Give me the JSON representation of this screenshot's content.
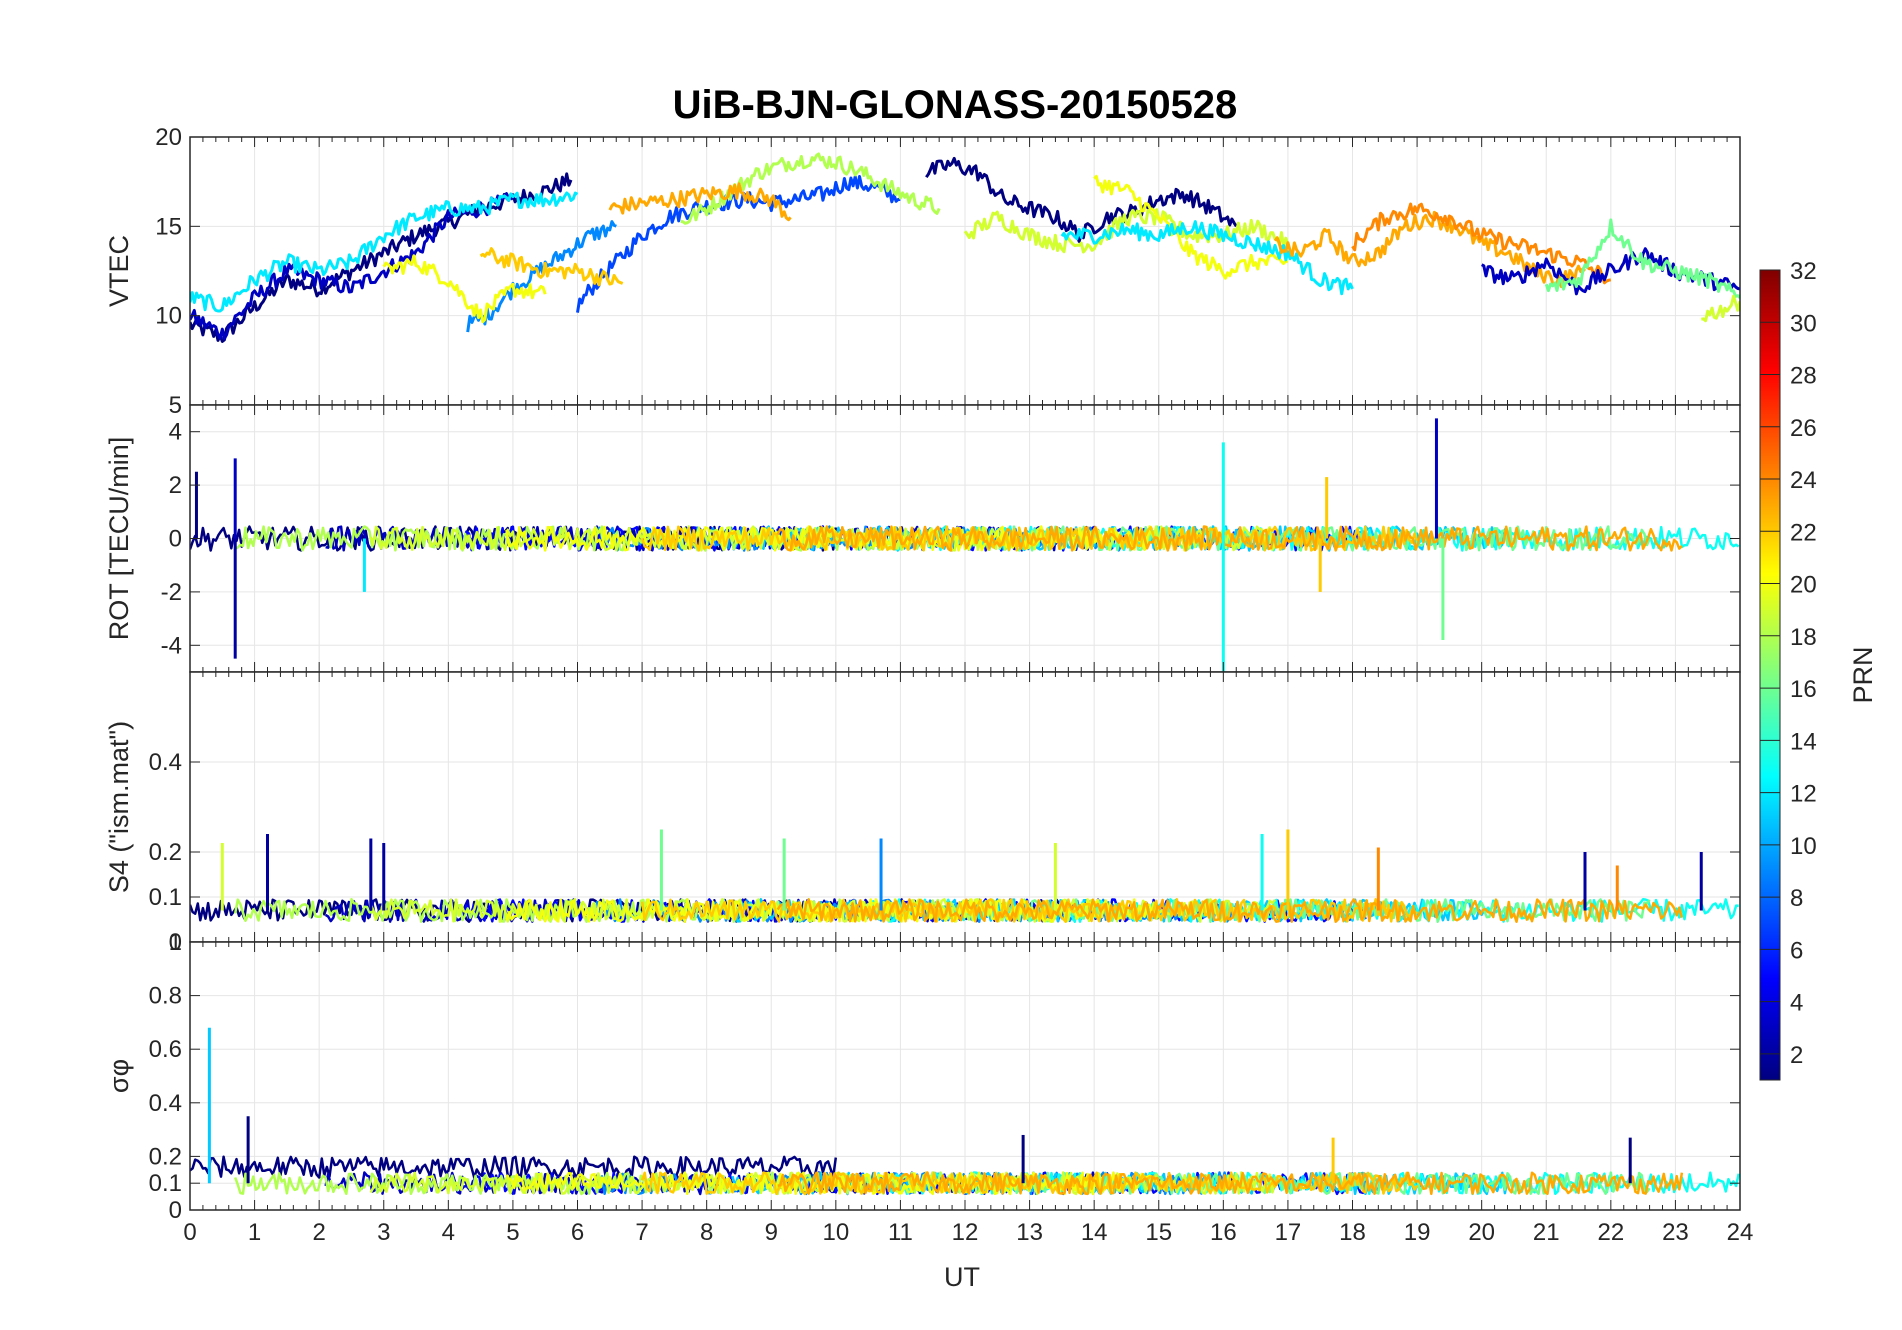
{
  "chart_data": {
    "type": "line",
    "title": "UiB-BJN-GLONASS-20150528",
    "xlabel": "UT",
    "xlim": [
      0,
      24
    ],
    "x_ticks": [
      "0",
      "1",
      "2",
      "3",
      "4",
      "5",
      "6",
      "7",
      "8",
      "9",
      "10",
      "11",
      "12",
      "13",
      "14",
      "15",
      "16",
      "17",
      "18",
      "19",
      "20",
      "21",
      "22",
      "23",
      "24"
    ],
    "grid": true,
    "colormap": "jet",
    "colorbar": {
      "label": "PRN",
      "range": [
        1,
        32
      ],
      "ticks": [
        "2",
        "4",
        "6",
        "8",
        "10",
        "12",
        "14",
        "16",
        "18",
        "20",
        "22",
        "24",
        "26",
        "28",
        "30",
        "32"
      ],
      "placement": "right"
    },
    "panels": [
      {
        "id": "vtec",
        "ylabel": "VTEC",
        "ylim": [
          5,
          20
        ],
        "y_ticks": [
          "5",
          "10",
          "15",
          "20"
        ],
        "series": [
          {
            "prn": 1,
            "x": [
              0,
              0.5,
              1,
              1.5,
              2,
              2.5,
              3,
              3.5,
              4,
              4.5,
              5,
              5.5,
              5.9
            ],
            "y": [
              9.5,
              8.8,
              10.5,
              12,
              11.5,
              12.5,
              13.5,
              14.5,
              15.2,
              16,
              16.5,
              17,
              17.6
            ]
          },
          {
            "prn": 3,
            "x": [
              0,
              0.5,
              1,
              1.5,
              2,
              2.5,
              3,
              3.5,
              4,
              4.5,
              5
            ],
            "y": [
              10,
              9,
              11,
              12.5,
              12,
              11.5,
              12.5,
              13.5,
              15.5,
              16,
              16.5
            ]
          },
          {
            "prn": 7,
            "x": [
              6,
              6.2,
              6.6,
              7,
              7.4,
              7.8,
              8.2,
              8.6,
              9,
              9.4,
              9.8,
              10.2,
              10.6,
              11
            ],
            "y": [
              10.5,
              11.5,
              13,
              14.5,
              15.5,
              16,
              16.3,
              16.5,
              16.3,
              16.5,
              16.8,
              17.5,
              17.2,
              16.5
            ]
          },
          {
            "prn": 9,
            "x": [
              4.3,
              4.6,
              5,
              5.4,
              5.8,
              6.2,
              6.6
            ],
            "y": [
              9.5,
              10,
              11.5,
              12.5,
              13.5,
              14.5,
              15
            ]
          },
          {
            "prn": 12,
            "x": [
              0,
              0.5,
              1,
              1.5,
              2,
              2.5,
              3,
              3.5,
              4,
              4.5,
              5,
              5.5,
              6
            ],
            "y": [
              11,
              10.5,
              12,
              13,
              12.5,
              13,
              14.5,
              15.5,
              16,
              16,
              16.5,
              16.5,
              16.8
            ]
          },
          {
            "prn": 18,
            "x": [
              7.6,
              8,
              8.4,
              8.8,
              9.2,
              9.6,
              10,
              10.4,
              10.8,
              11.2,
              11.6
            ],
            "y": [
              15.2,
              16,
              17,
              18,
              18.5,
              18.8,
              18.6,
              18,
              17.2,
              16.5,
              16
            ]
          },
          {
            "prn": 20,
            "x": [
              3,
              3.5,
              4,
              4.5,
              5,
              5.5
            ],
            "y": [
              12.5,
              13,
              12,
              10,
              11.5,
              11.2
            ]
          },
          {
            "prn": 22,
            "x": [
              4.5,
              5,
              5.5,
              6,
              6.5,
              6.7
            ],
            "y": [
              13.5,
              13,
              12.5,
              12.5,
              12,
              11.8
            ]
          },
          {
            "prn": 23,
            "x": [
              6.5,
              7,
              7.5,
              8,
              8.5,
              9,
              9.3
            ],
            "y": [
              16,
              16.3,
              16.5,
              16.8,
              17,
              16.5,
              15.5
            ]
          },
          {
            "prn": 1,
            "x": [
              11.4,
              11.8,
              12.2,
              12.6,
              13,
              13.4,
              13.8,
              14.2,
              14.6,
              15,
              15.4,
              15.8,
              16.2
            ],
            "y": [
              18,
              18.5,
              18,
              16.5,
              16,
              15.5,
              14.5,
              15.5,
              15.8,
              16.5,
              16.8,
              16,
              15
            ]
          },
          {
            "prn": 19,
            "x": [
              12,
              12.5,
              13,
              13.5,
              14,
              14.5,
              15,
              15.5,
              16,
              16.5,
              17
            ],
            "y": [
              14.5,
              15.5,
              14.5,
              14,
              14,
              15.5,
              15.5,
              14.5,
              14.5,
              15,
              14
            ]
          },
          {
            "prn": 20,
            "x": [
              14,
              14.5,
              15,
              15.5,
              16,
              16.5,
              17
            ],
            "y": [
              17.5,
              17,
              15.5,
              13.5,
              12.5,
              13,
              13
            ]
          },
          {
            "prn": 12,
            "x": [
              13.5,
              14,
              14.5,
              15,
              15.5,
              16,
              16.5,
              17,
              17.5,
              18
            ],
            "y": [
              14.5,
              14.5,
              14.8,
              14.5,
              15,
              14.5,
              14,
              13.5,
              12,
              11.5
            ]
          },
          {
            "prn": 23,
            "x": [
              16.8,
              17.2,
              17.6,
              18,
              18.4,
              18.8,
              19.2,
              19.6,
              20,
              20.4,
              20.8,
              21.2,
              21.6
            ],
            "y": [
              14,
              13.5,
              14.5,
              13,
              13.5,
              15,
              15.5,
              15,
              14,
              13.5,
              12.5,
              12,
              12.5
            ]
          },
          {
            "prn": 24,
            "x": [
              18,
              18.5,
              19,
              19.5,
              20,
              20.5,
              21,
              21.5,
              22
            ],
            "y": [
              14,
              15.5,
              16,
              15.5,
              14.5,
              14,
              13.5,
              13,
              12
            ]
          },
          {
            "prn": 3,
            "x": [
              20,
              20.5,
              21,
              21.5,
              22,
              22.5,
              23,
              23.5,
              24
            ],
            "y": [
              12.5,
              12,
              13,
              11.5,
              12.5,
              13.5,
              12.5,
              12,
              11.5
            ]
          },
          {
            "prn": 16,
            "x": [
              21,
              21.5,
              22,
              22.5,
              23,
              23.5,
              24
            ],
            "y": [
              11.5,
              12,
              15,
              13,
              12.5,
              12,
              11
            ]
          },
          {
            "prn": 19,
            "x": [
              23.4,
              23.7,
              24
            ],
            "y": [
              10,
              10.3,
              10.8
            ]
          }
        ]
      },
      {
        "id": "rot",
        "ylabel": "ROT [TECU/min]",
        "ylim": [
          -5,
          5
        ],
        "y_ticks": [
          "-4",
          "-2",
          "0",
          "2",
          "4"
        ],
        "spikes": [
          {
            "prn": 1,
            "x": 0.1,
            "y": 2.5
          },
          {
            "prn": 2,
            "x": 0.7,
            "y": -4.5
          },
          {
            "prn": 3,
            "x": 0.7,
            "y": 3
          },
          {
            "prn": 12,
            "x": 2.7,
            "y": -2
          },
          {
            "prn": 13,
            "x": 16,
            "y": 3.6
          },
          {
            "prn": 13,
            "x": 16,
            "y": -5
          },
          {
            "prn": 22,
            "x": 17.6,
            "y": 2.3
          },
          {
            "prn": 22,
            "x": 17.5,
            "y": -2
          },
          {
            "prn": 3,
            "x": 19.3,
            "y": 4.5
          },
          {
            "prn": 16,
            "x": 19.4,
            "y": -3.8
          }
        ]
      },
      {
        "id": "s4",
        "ylabel": "S4 (\"ism.mat\")",
        "ylim": [
          0,
          0.6
        ],
        "y_ticks": [
          "0",
          "0.1",
          "0.2",
          "0.4"
        ],
        "peaks": [
          {
            "prn": 19,
            "x": 0.5,
            "y": 0.22
          },
          {
            "prn": 2,
            "x": 1.2,
            "y": 0.24
          },
          {
            "prn": 2,
            "x": 2.8,
            "y": 0.23
          },
          {
            "prn": 2,
            "x": 3.0,
            "y": 0.22
          },
          {
            "prn": 16,
            "x": 7.3,
            "y": 0.25
          },
          {
            "prn": 16,
            "x": 9.2,
            "y": 0.23
          },
          {
            "prn": 9,
            "x": 10.7,
            "y": 0.23
          },
          {
            "prn": 19,
            "x": 13.4,
            "y": 0.22
          },
          {
            "prn": 13,
            "x": 16.6,
            "y": 0.24
          },
          {
            "prn": 22,
            "x": 17.0,
            "y": 0.25
          },
          {
            "prn": 24,
            "x": 18.4,
            "y": 0.21
          },
          {
            "prn": 2,
            "x": 21.6,
            "y": 0.2
          },
          {
            "prn": 24,
            "x": 22.1,
            "y": 0.17
          },
          {
            "prn": 2,
            "x": 23.4,
            "y": 0.2
          }
        ]
      },
      {
        "id": "sigma_phi",
        "ylabel": "σφ",
        "ylim": [
          0,
          1
        ],
        "y_ticks": [
          "0",
          "0.1",
          "0.2",
          "0.4",
          "0.6",
          "0.8",
          "1"
        ],
        "peaks": [
          {
            "prn": 11,
            "x": 0.3,
            "y": 0.68
          },
          {
            "prn": 1,
            "x": 0.9,
            "y": 0.35
          },
          {
            "prn": 1,
            "x": 12.9,
            "y": 0.28
          },
          {
            "prn": 22,
            "x": 17.7,
            "y": 0.27
          },
          {
            "prn": 1,
            "x": 22.3,
            "y": 0.27
          }
        ]
      }
    ]
  }
}
